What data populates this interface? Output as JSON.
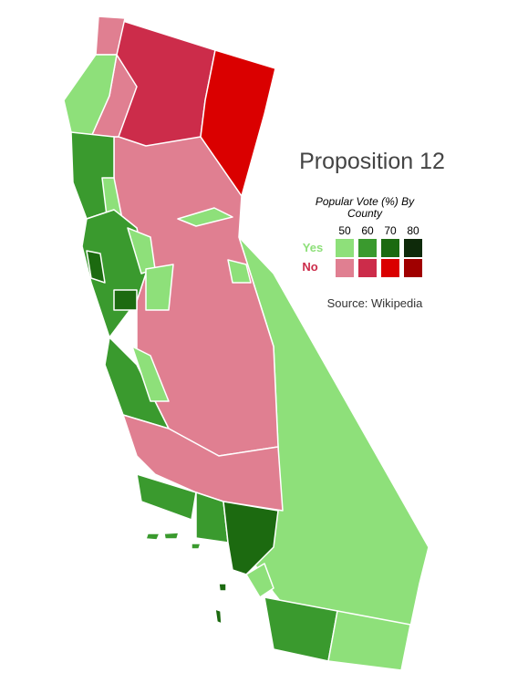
{
  "title": "Proposition 12",
  "legend": {
    "title": "Popular Vote (%) By County",
    "thresholds": [
      50,
      60,
      70,
      80
    ],
    "yes": {
      "label": "Yes",
      "colors": [
        "#8ee07a",
        "#3a9a2e",
        "#1c6a10",
        "#0e2a0a"
      ]
    },
    "no": {
      "label": "No",
      "colors": [
        "#e07f91",
        "#cc2c4a",
        "#da0000",
        "#a00000"
      ]
    }
  },
  "source": "Source: Wikipedia"
}
